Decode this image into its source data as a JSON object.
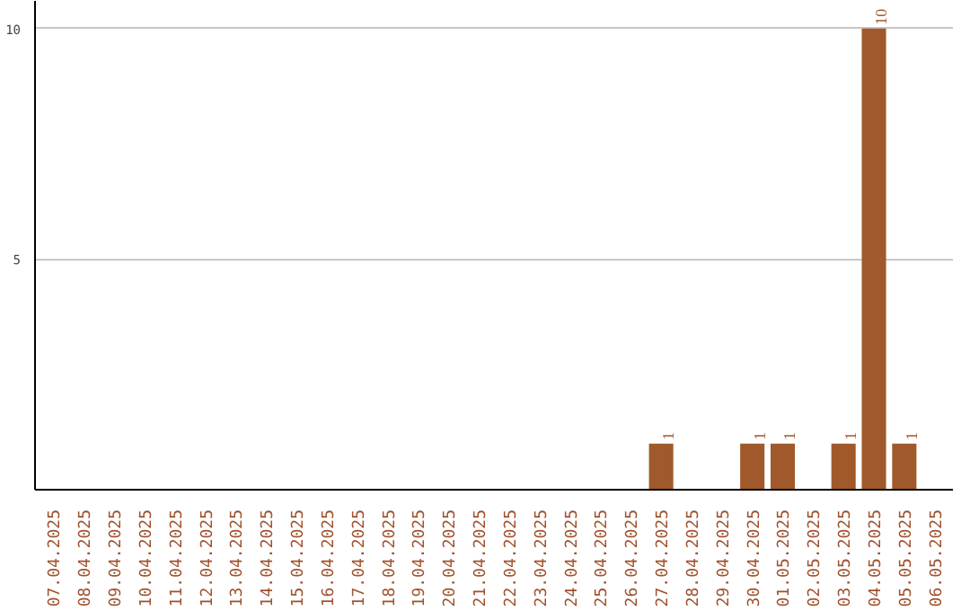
{
  "chart_data": {
    "type": "bar",
    "categories": [
      "07.04.2025",
      "08.04.2025",
      "09.04.2025",
      "10.04.2025",
      "11.04.2025",
      "12.04.2025",
      "13.04.2025",
      "14.04.2025",
      "15.04.2025",
      "16.04.2025",
      "17.04.2025",
      "18.04.2025",
      "19.04.2025",
      "20.04.2025",
      "21.04.2025",
      "22.04.2025",
      "23.04.2025",
      "24.04.2025",
      "25.04.2025",
      "26.04.2025",
      "27.04.2025",
      "28.04.2025",
      "29.04.2025",
      "30.04.2025",
      "01.05.2025",
      "02.05.2025",
      "03.05.2025",
      "04.05.2025",
      "05.05.2025",
      "06.05.2025"
    ],
    "values": [
      0,
      0,
      0,
      0,
      0,
      0,
      0,
      0,
      0,
      0,
      0,
      0,
      0,
      0,
      0,
      0,
      0,
      0,
      0,
      0,
      1,
      0,
      0,
      1,
      1,
      0,
      1,
      10,
      1,
      0
    ],
    "value_labels": [
      null,
      null,
      null,
      null,
      null,
      null,
      null,
      null,
      null,
      null,
      null,
      null,
      null,
      null,
      null,
      null,
      null,
      null,
      null,
      null,
      "1",
      null,
      null,
      "1",
      "1",
      null,
      "1",
      "10",
      "1",
      null
    ],
    "color": "#a0592a",
    "ylim": [
      0,
      10.6
    ],
    "yticks": [
      5,
      10
    ],
    "grid": "y"
  }
}
